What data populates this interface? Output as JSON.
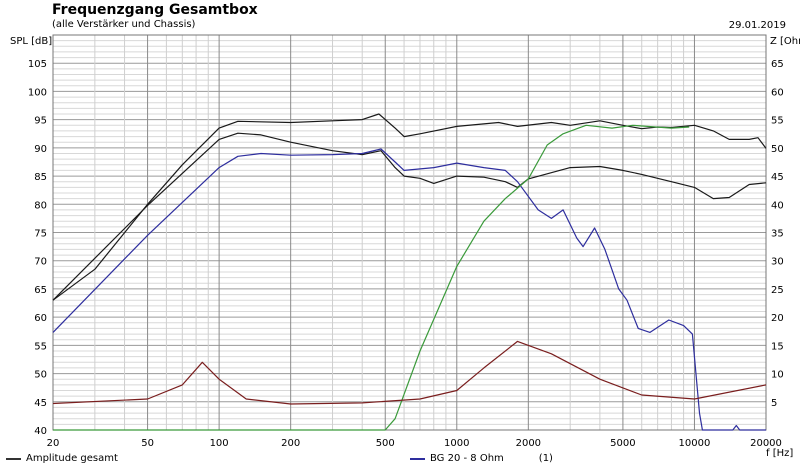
{
  "chart_data": {
    "type": "line",
    "title": "Frequenzgang Gesamtbox",
    "subtitle": "(alle Verstärker und Chassis)",
    "date": "29.01.2019",
    "xlabel": "f [Hz]",
    "ylabel": "SPL [dB]",
    "y2label": "Z [Ohm]",
    "xscale": "log",
    "xlim": [
      20,
      20000
    ],
    "ylim": [
      40,
      110
    ],
    "y2lim": [
      0,
      70
    ],
    "grid": true,
    "legend_placement": "bottom",
    "x_ticks": [
      20,
      50,
      100,
      200,
      500,
      1000,
      2000,
      5000,
      10000,
      20000
    ],
    "x_tick_labels": [
      "20",
      "50",
      "100",
      "200",
      "500",
      "1000",
      "2000",
      "5000",
      "10000",
      "20000"
    ],
    "y_ticks": [
      40,
      45,
      50,
      55,
      60,
      65,
      70,
      75,
      80,
      85,
      90,
      95,
      100,
      105
    ],
    "y_tick_labels": [
      "40",
      "45",
      "50",
      "55",
      "60",
      "65",
      "70",
      "75",
      "80",
      "85",
      "90",
      "95",
      "100",
      "105"
    ],
    "y2_ticks": [
      5,
      10,
      15,
      20,
      25,
      30,
      35,
      40,
      45,
      50,
      55,
      60,
      65
    ],
    "y2_tick_labels": [
      "5",
      "10",
      "15",
      "20",
      "25",
      "30",
      "35",
      "40",
      "45",
      "50",
      "55",
      "60",
      "65"
    ],
    "legend": [
      {
        "label": "Amplitude gesamt",
        "color": "#333333"
      },
      {
        "label": "BG 20 - 8 Ohm",
        "color": "#2e2e9e",
        "note": "(1)"
      }
    ],
    "series": [
      {
        "name": "Amplitude gesamt",
        "color": "#1a1a1a",
        "axis": "left",
        "x": [
          20,
          30,
          50,
          70,
          100,
          120,
          200,
          300,
          400,
          470,
          550,
          600,
          700,
          1000,
          1500,
          1800,
          2500,
          3000,
          4000,
          5000,
          6000,
          7000,
          8000,
          10000,
          12000,
          14000,
          17000,
          18500,
          20000
        ],
        "y": [
          63,
          68.5,
          80,
          87,
          93.5,
          94.7,
          94.5,
          94.8,
          95,
          96,
          93.5,
          92,
          92.5,
          93.8,
          94.5,
          93.8,
          94.5,
          94,
          94.8,
          94,
          93.4,
          93.7,
          93.6,
          94,
          93,
          91.5,
          91.5,
          91.8,
          89.9
        ]
      },
      {
        "color": "#1a1a1a",
        "axis": "left",
        "x": [
          20,
          50,
          100,
          120,
          150,
          200,
          300,
          400,
          480,
          550,
          600,
          700,
          800,
          1000,
          1300,
          1600,
          1800,
          2000,
          3000,
          4000,
          5000,
          6000,
          8000,
          10000,
          12000,
          14000,
          17000,
          20000
        ],
        "y": [
          63,
          79.8,
          91.5,
          92.6,
          92.3,
          91,
          89.5,
          88.8,
          89.5,
          86.5,
          85,
          84.6,
          83.7,
          85,
          84.8,
          84,
          83,
          84.5,
          86.5,
          86.7,
          86,
          85.3,
          84,
          83,
          81,
          81.2,
          83.5,
          83.8
        ]
      },
      {
        "name": "BG 20 - 8 Ohm",
        "color": "#2e2e9e",
        "axis": "left",
        "x": [
          20,
          50,
          100,
          120,
          150,
          200,
          300,
          400,
          480,
          550,
          600,
          800,
          1000,
          1300,
          1600,
          1800,
          2200,
          2500,
          2800,
          3200,
          3400,
          3800,
          4200,
          4800,
          5200,
          5800,
          6500,
          7800,
          9000,
          9800,
          10500,
          10800,
          14500,
          15000,
          15500,
          20000
        ],
        "y": [
          57.3,
          74.5,
          86.5,
          88.5,
          89,
          88.7,
          88.8,
          89,
          89.8,
          87.5,
          86,
          86.5,
          87.3,
          86.5,
          86,
          84,
          79,
          77.5,
          79,
          74,
          72.5,
          75.8,
          72,
          65,
          63,
          58,
          57.3,
          59.5,
          58.5,
          57,
          43,
          40,
          40,
          40.8,
          40,
          40
        ]
      },
      {
        "color": "#3a9a3a",
        "axis": "left",
        "x": [
          20,
          500,
          550,
          700,
          1000,
          1300,
          1600,
          2000,
          2400,
          2800,
          3500,
          4500,
          5500,
          8000,
          9500
        ],
        "y": [
          40,
          40,
          42,
          54,
          69,
          77,
          81,
          84.5,
          90.5,
          92.5,
          94,
          93.5,
          94,
          93.5,
          93.7
        ]
      },
      {
        "color": "#7a1e1e",
        "axis": "right",
        "x": [
          20,
          50,
          70,
          85,
          100,
          130,
          200,
          400,
          700,
          1000,
          1300,
          1800,
          2500,
          4000,
          6000,
          10000,
          20000
        ],
        "y": [
          4.7,
          5.5,
          8,
          12,
          9,
          5.5,
          4.6,
          4.8,
          5.5,
          7,
          11,
          15.7,
          13.5,
          9,
          6.2,
          5.5,
          8
        ]
      }
    ]
  }
}
